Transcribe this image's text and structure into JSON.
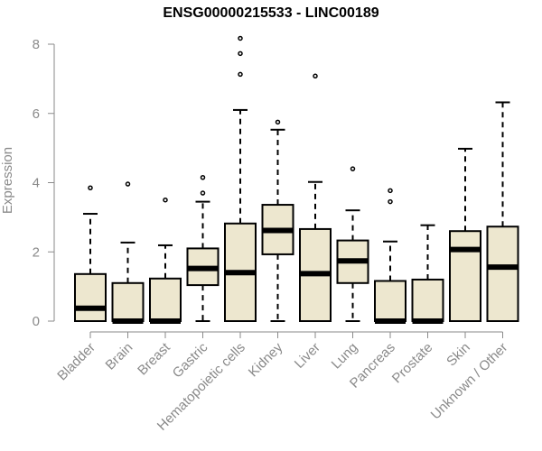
{
  "chart_data": {
    "type": "boxplot",
    "title": "ENSG00000215533 - LINC00189",
    "xlabel": "",
    "ylabel": "Expression",
    "ylim": [
      0,
      8.2
    ],
    "yticks": [
      0,
      2,
      4,
      6,
      8
    ],
    "box_fill": "#ede7cf",
    "categories": [
      "Bladder",
      "Brain",
      "Breast",
      "Gastric",
      "Hematopoietic cells",
      "Kidney",
      "Liver",
      "Lung",
      "Pancreas",
      "Prostate",
      "Skin",
      "Unknown / Other"
    ],
    "boxes": [
      {
        "min": 0,
        "q1": 0,
        "median": 0.37,
        "q3": 1.36,
        "max": 3.1,
        "outliers": [
          3.85
        ]
      },
      {
        "min": 0,
        "q1": 0,
        "median": 0.0,
        "q3": 1.1,
        "max": 2.27,
        "outliers": [
          3.96
        ]
      },
      {
        "min": 0,
        "q1": 0,
        "median": 0.0,
        "q3": 1.23,
        "max": 2.19,
        "outliers": [
          3.5
        ]
      },
      {
        "min": 0,
        "q1": 1.04,
        "median": 1.52,
        "q3": 2.1,
        "max": 3.45,
        "outliers": [
          3.7,
          4.15
        ]
      },
      {
        "min": 0,
        "q1": 0,
        "median": 1.4,
        "q3": 2.82,
        "max": 6.1,
        "outliers": [
          7.13,
          7.73,
          8.17
        ]
      },
      {
        "min": 0,
        "q1": 1.93,
        "median": 2.62,
        "q3": 3.36,
        "max": 5.53,
        "outliers": [
          5.75
        ]
      },
      {
        "min": 0,
        "q1": 0,
        "median": 1.37,
        "q3": 2.66,
        "max": 4.02,
        "outliers": [
          7.08
        ]
      },
      {
        "min": 0,
        "q1": 1.1,
        "median": 1.74,
        "q3": 2.33,
        "max": 3.2,
        "outliers": [
          4.4
        ]
      },
      {
        "min": 0,
        "q1": 0,
        "median": 0.0,
        "q3": 1.16,
        "max": 2.3,
        "outliers": [
          3.45,
          3.77
        ]
      },
      {
        "min": 0,
        "q1": 0,
        "median": 0.0,
        "q3": 1.2,
        "max": 2.77,
        "outliers": []
      },
      {
        "min": 0,
        "q1": 0,
        "median": 2.07,
        "q3": 2.6,
        "max": 4.98,
        "outliers": []
      },
      {
        "min": 0,
        "q1": 0,
        "median": 1.56,
        "q3": 2.73,
        "max": 6.32,
        "outliers": []
      }
    ]
  }
}
